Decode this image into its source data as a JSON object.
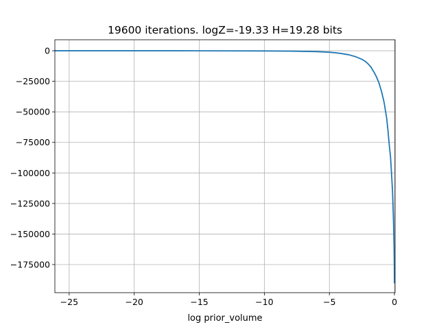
{
  "chart_data": {
    "type": "line",
    "title": "19600 iterations. logZ=-19.33 H=19.28 bits",
    "xlabel": "log prior_volume",
    "ylabel": "",
    "xlim": [
      -26.1,
      0.05
    ],
    "ylim": [
      -198000,
      9000
    ],
    "grid": true,
    "x_ticks": [
      -25,
      -20,
      -15,
      -10,
      -5,
      0
    ],
    "x_tick_labels": [
      "−25",
      "−20",
      "−15",
      "−10",
      "−5",
      "0"
    ],
    "y_ticks": [
      0,
      -25000,
      -50000,
      -75000,
      -100000,
      -125000,
      -150000,
      -175000
    ],
    "y_tick_labels": [
      "0",
      "−25000",
      "−50000",
      "−75000",
      "−100000",
      "−125000",
      "−150000",
      "−175000"
    ],
    "series": [
      {
        "color": "#1f77b4",
        "x": [
          -26.1,
          -20,
          -15,
          -10,
          -8,
          -6,
          -5,
          -4.5,
          -4,
          -3.5,
          -3,
          -2.5,
          -2.2,
          -2,
          -1.8,
          -1.6,
          -1.4,
          -1.2,
          -1.0,
          -0.8,
          -0.6,
          -0.5,
          -0.4,
          -0.3,
          -0.2,
          -0.15,
          -0.1,
          -0.06,
          -0.03,
          -0.01,
          0
        ],
        "y": [
          -5,
          -10,
          -30,
          -150,
          -300,
          -700,
          -1200,
          -1700,
          -2400,
          -3300,
          -4800,
          -7000,
          -9000,
          -11000,
          -13500,
          -17000,
          -21000,
          -26000,
          -33000,
          -42000,
          -55000,
          -65000,
          -77000,
          -87000,
          -105000,
          -115000,
          -130000,
          -145000,
          -160000,
          -175000,
          -190000
        ]
      }
    ]
  }
}
